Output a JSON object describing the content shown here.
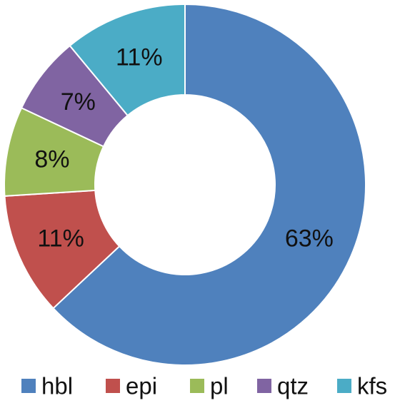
{
  "chart_data": {
    "type": "pie",
    "variant": "donut",
    "title": "",
    "legend_position": "bottom",
    "slices": [
      {
        "name": "hbl",
        "value": 63,
        "label": "63%",
        "color": "#4F81BD"
      },
      {
        "name": "epi",
        "value": 11,
        "label": "11%",
        "color": "#C0504D"
      },
      {
        "name": "pl",
        "value": 8,
        "label": "8%",
        "color": "#9BBB59"
      },
      {
        "name": "qtz",
        "value": 7,
        "label": "7%",
        "color": "#8064A2"
      },
      {
        "name": "kfs",
        "value": 11,
        "label": "11%",
        "color": "#4BACC6"
      }
    ]
  }
}
